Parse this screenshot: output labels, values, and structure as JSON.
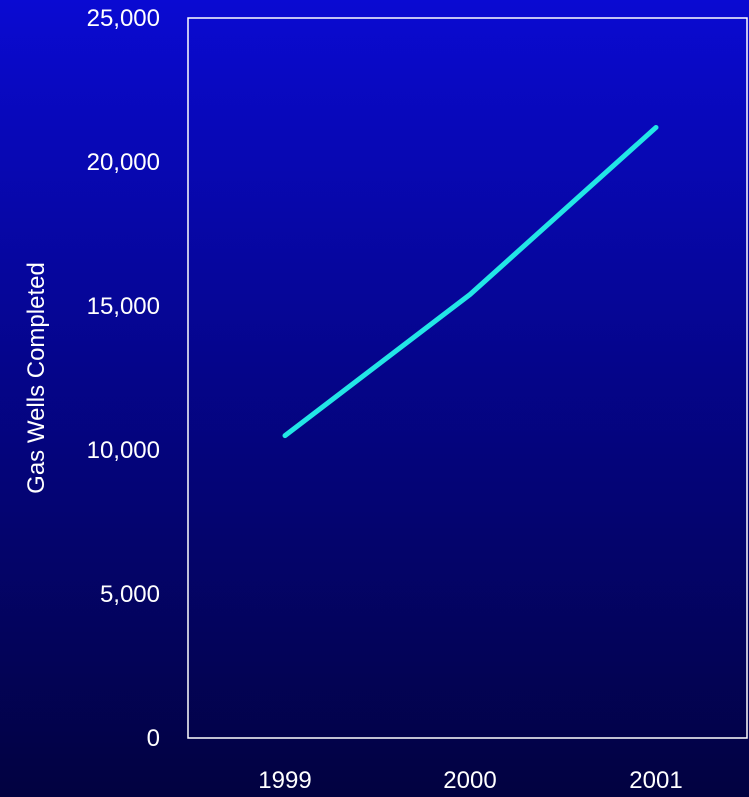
{
  "chart_data": {
    "type": "line",
    "title": "",
    "xlabel": "",
    "ylabel": "Gas Wells Completed",
    "categories": [
      "1999",
      "2000",
      "2001"
    ],
    "series": [
      {
        "values": [
          10500,
          15400,
          21200
        ],
        "color": "#22e6e6"
      }
    ],
    "ylim": [
      0,
      25000
    ],
    "yticks": [
      0,
      5000,
      10000,
      15000,
      20000,
      25000
    ],
    "ytick_labels": [
      "0",
      "5,000",
      "10,000",
      "15,000",
      "20,000",
      "25,000"
    ],
    "grid": false,
    "legend": "none",
    "colors": {
      "plot_frame": "#ffffff",
      "text": "#ffffff"
    }
  }
}
